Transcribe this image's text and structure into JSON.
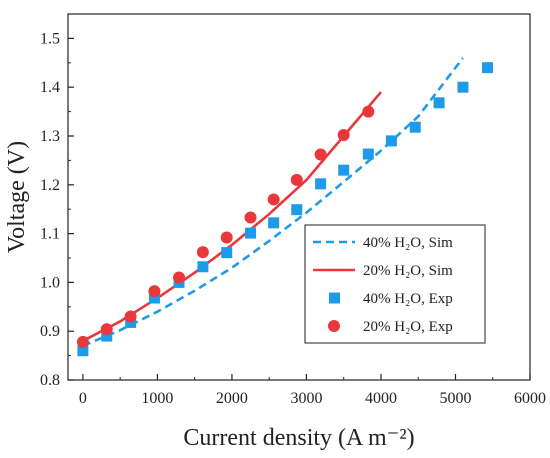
{
  "chart_data": {
    "type": "line",
    "title": "",
    "xlabel": "Current density (A m⁻²)",
    "ylabel": "Voltage (V)",
    "xlim": [
      -200,
      6000
    ],
    "ylim": [
      0.8,
      1.55
    ],
    "xticks": [
      0,
      1000,
      2000,
      3000,
      4000,
      5000,
      6000
    ],
    "yticks": [
      0.8,
      0.9,
      1.0,
      1.1,
      1.2,
      1.3,
      1.4,
      1.5
    ],
    "xtick_labels": [
      "0",
      "1000",
      "2000",
      "3000",
      "4000",
      "5000",
      "6000"
    ],
    "ytick_labels": [
      "0.8",
      "0.9",
      "1.0",
      "1.1",
      "1.2",
      "1.3",
      "1.4",
      "1.5"
    ],
    "grid": false,
    "legend_position": "bottom-right",
    "series": [
      {
        "name": "40% H₂O, Sim",
        "kind": "line",
        "style": "dashed",
        "color": "#1E9BE8",
        "x": [
          0,
          500,
          1000,
          1500,
          2000,
          2500,
          3000,
          3500,
          4000,
          4500,
          5100
        ],
        "y": [
          0.87,
          0.902,
          0.94,
          0.983,
          1.03,
          1.085,
          1.143,
          1.206,
          1.27,
          1.34,
          1.46
        ]
      },
      {
        "name": "20% H₂O, Sim",
        "kind": "line",
        "style": "solid",
        "color": "#E8383B",
        "x": [
          0,
          500,
          1000,
          1500,
          2000,
          2500,
          3000,
          3500,
          4000
        ],
        "y": [
          0.88,
          0.92,
          0.968,
          1.02,
          1.077,
          1.14,
          1.21,
          1.3,
          1.39
        ]
      },
      {
        "name": "40% H₂O, Exp",
        "kind": "scatter",
        "marker": "square",
        "color": "#1E9BE8",
        "x": [
          0,
          320,
          640,
          960,
          1290,
          1610,
          1930,
          2250,
          2560,
          2870,
          3190,
          3500,
          3830,
          4140,
          4460,
          4780,
          5100,
          5430
        ],
        "y": [
          0.86,
          0.89,
          0.918,
          0.968,
          1.0,
          1.032,
          1.061,
          1.101,
          1.122,
          1.149,
          1.202,
          1.23,
          1.263,
          1.29,
          1.318,
          1.368,
          1.4,
          1.44
        ]
      },
      {
        "name": "20% H₂O, Exp",
        "kind": "scatter",
        "marker": "circle",
        "color": "#E8383B",
        "x": [
          0,
          320,
          640,
          960,
          1290,
          1610,
          1930,
          2250,
          2560,
          2870,
          3190,
          3500,
          3830
        ],
        "y": [
          0.878,
          0.904,
          0.93,
          0.982,
          1.01,
          1.062,
          1.092,
          1.133,
          1.17,
          1.21,
          1.262,
          1.302,
          1.35
        ]
      }
    ]
  }
}
